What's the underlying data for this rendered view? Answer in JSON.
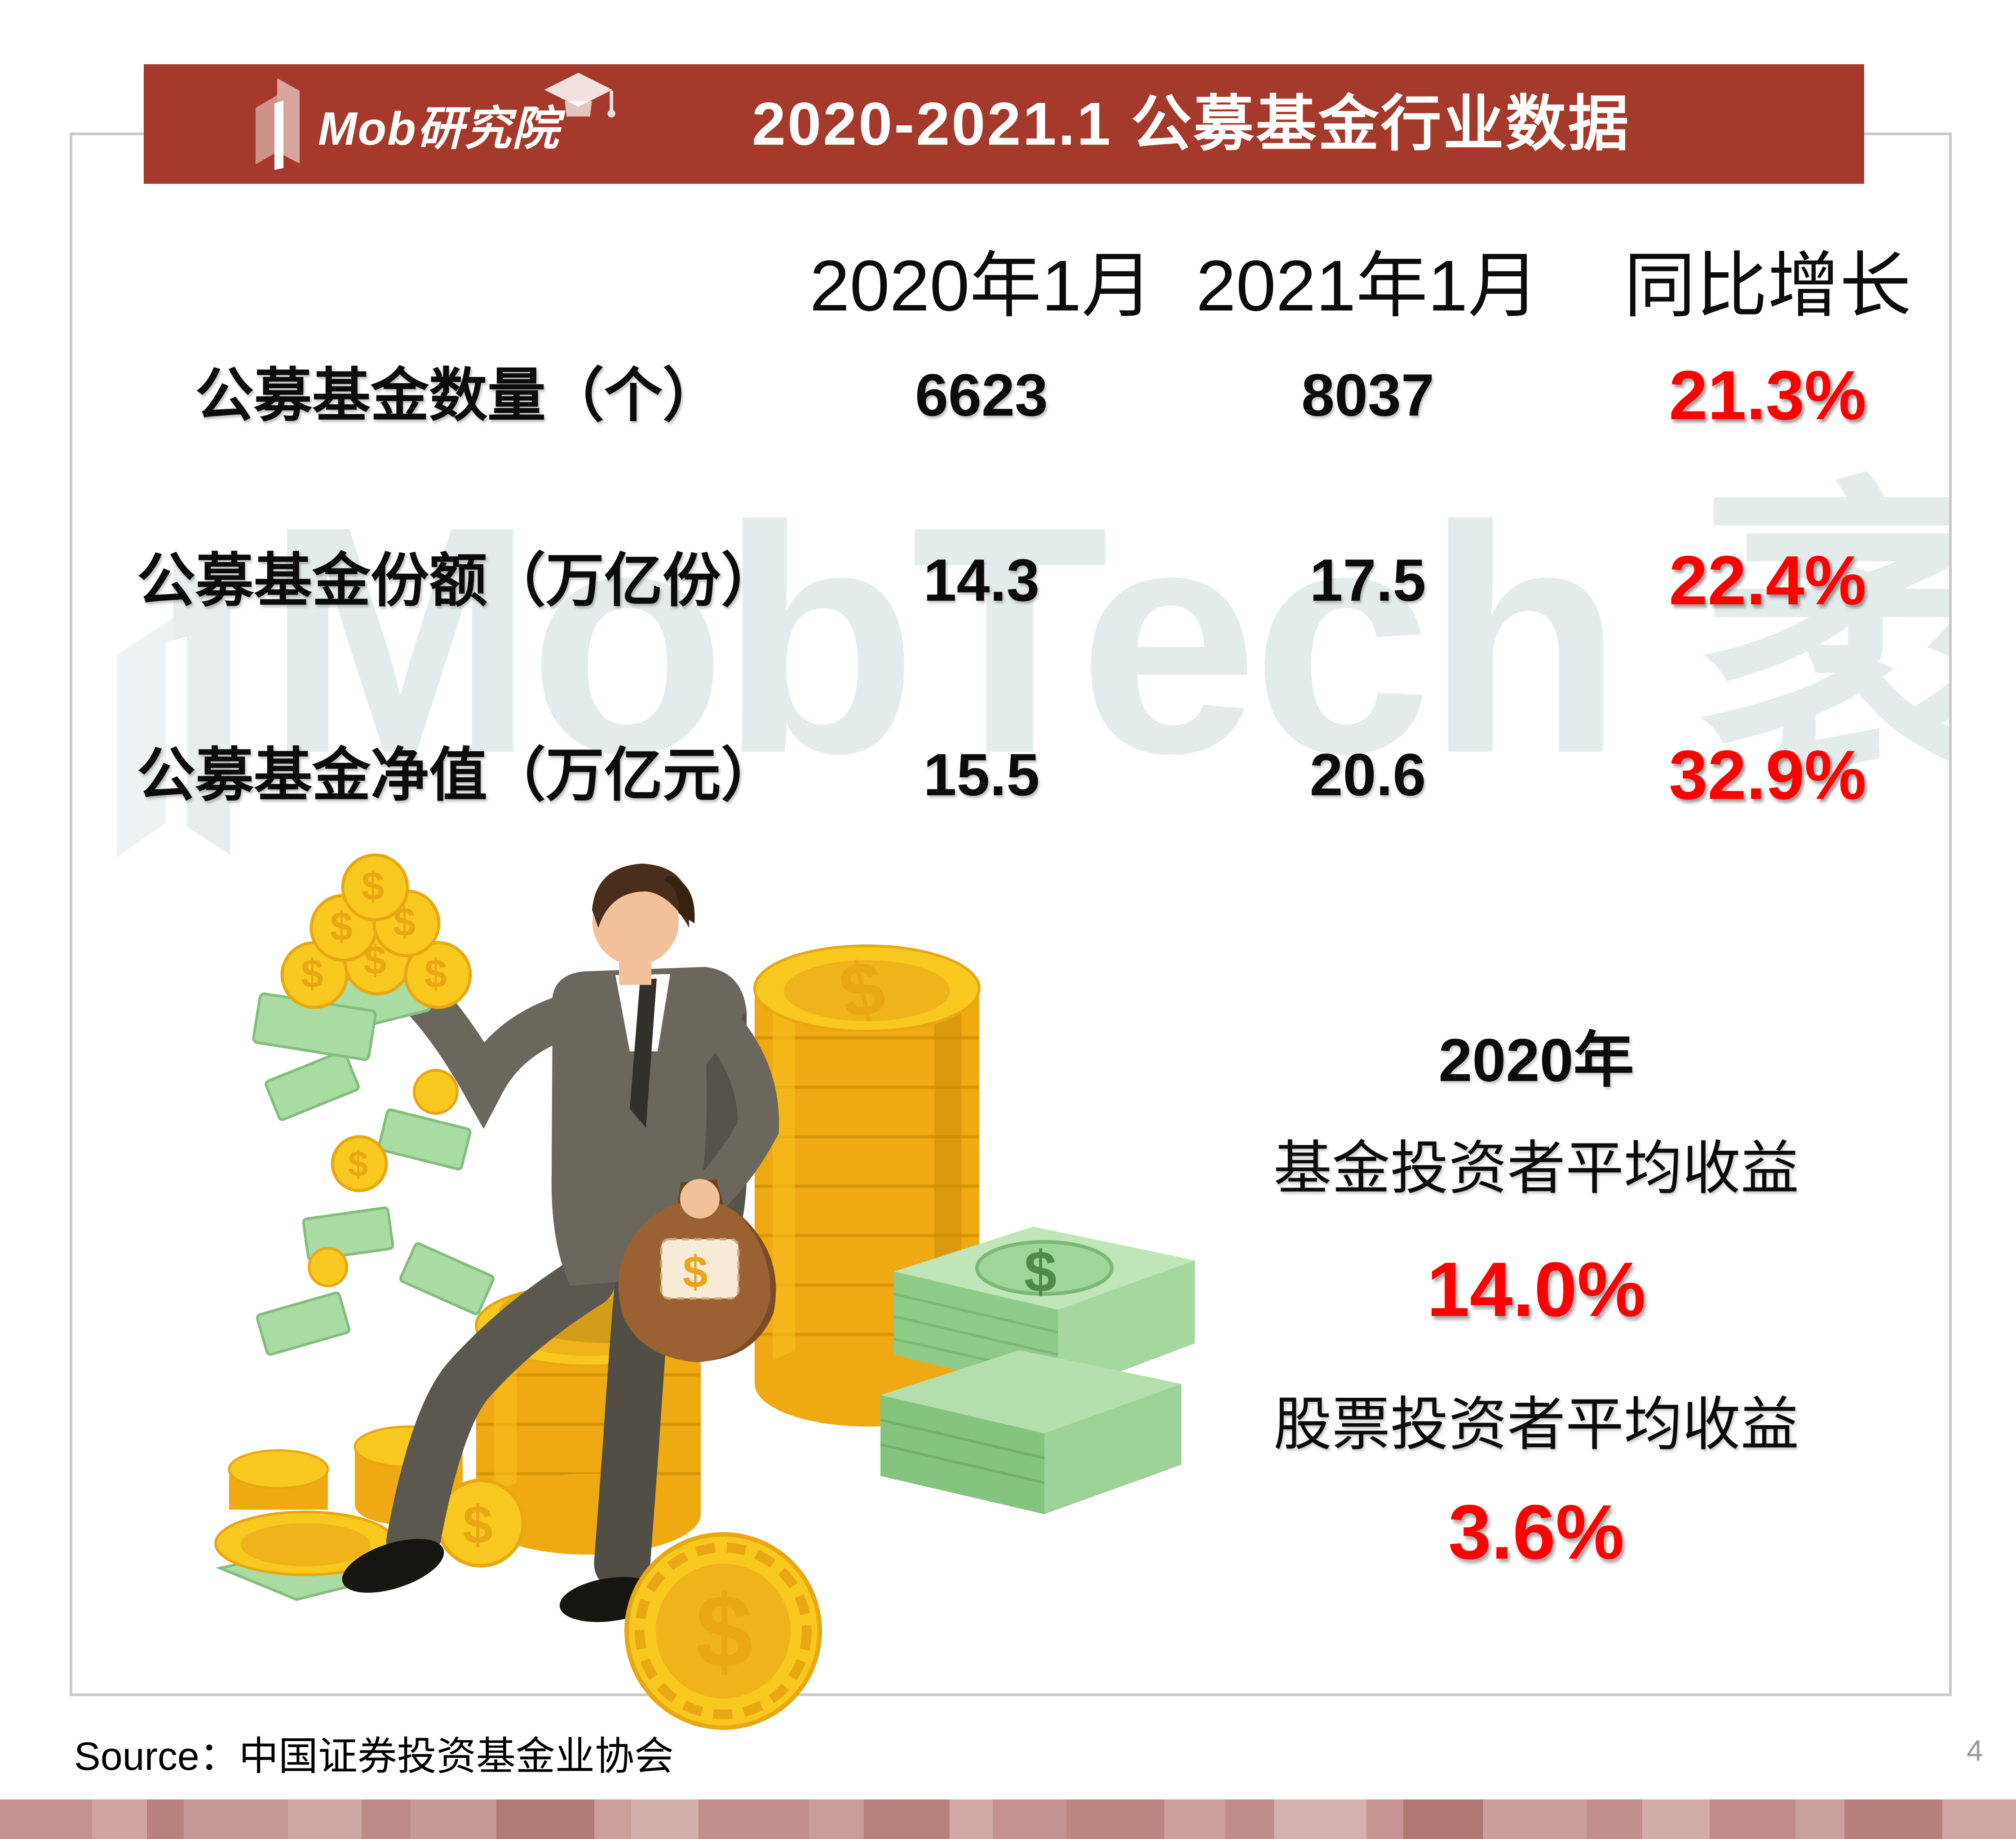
{
  "banner": {
    "logo_text": "Mob研究院",
    "title": "2020-2021.1 公募基金行业数据",
    "bg_color": "#a5392b"
  },
  "table": {
    "columns": [
      "2020年1月",
      "2021年1月",
      "同比增长"
    ],
    "rows": [
      {
        "label": "公募基金数量（个）",
        "v2020": "6623",
        "v2021": "8037",
        "growth": "21.3%"
      },
      {
        "label": "公募基金份额（万亿份）",
        "v2020": "14.3",
        "v2021": "17.5",
        "growth": "22.4%"
      },
      {
        "label": "公募基金净值（万亿元）",
        "v2020": "15.5",
        "v2021": "20.6",
        "growth": "32.9%"
      }
    ],
    "growth_color": "#ff0000"
  },
  "highlights": {
    "year": "2020年",
    "fund_label": "基金投资者平均收益",
    "fund_value": "14.0%",
    "stock_label": "股票投资者平均收益",
    "stock_value": "3.6%",
    "value_color": "#ff0000"
  },
  "watermark": {
    "text": "MobTech 袤博",
    "color": "#e4eceb"
  },
  "footer": {
    "source": "Source：中国证券投资基金业协会",
    "page_number": "4",
    "strip_colors": [
      "#c59391",
      "#cfa49f",
      "#b9827e",
      "#c79996",
      "#d0a8a3",
      "#bd8b87",
      "#c89a95",
      "#b27a76",
      "#cb9f9a",
      "#d4b0ab",
      "#c08f8b",
      "#ca9d98",
      "#b8817d",
      "#d1aaa5",
      "#c39290",
      "#bb8682",
      "#cc9f9b",
      "#c08e8a",
      "#d5b2ae",
      "#c69694",
      "#af7672",
      "#cb9e99",
      "#c18f8c",
      "#d2aca7",
      "#bf8c89",
      "#c9a09b",
      "#b67f7b",
      "#d0a7a2"
    ]
  }
}
